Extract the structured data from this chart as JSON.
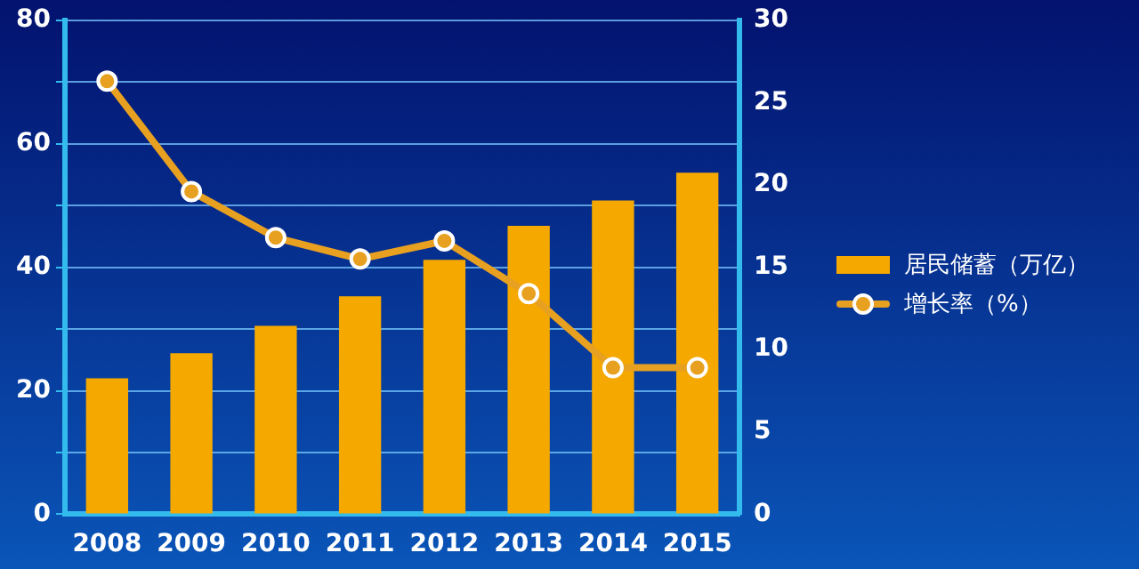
{
  "chart_data": {
    "type": "bar",
    "categories": [
      "2008",
      "2009",
      "2010",
      "2011",
      "2012",
      "2013",
      "2014",
      "2015"
    ],
    "series": [
      {
        "name": "居民储蓄（万亿）",
        "color": "#f5a800",
        "values": [
          22,
          26.1,
          30.5,
          35.3,
          41.2,
          46.7,
          50.8,
          55.3
        ]
      },
      {
        "name": "增长率（%）",
        "type": "line",
        "axis": "y2",
        "color": "#e8a020",
        "values": [
          26.3,
          19.6,
          16.8,
          15.5,
          16.6,
          13.4,
          8.9,
          8.9
        ]
      }
    ],
    "ylim": [
      0,
      80
    ],
    "yticks": [
      0,
      {
        "value": 10,
        "label": null
      },
      20,
      {
        "value": 30,
        "label": null
      },
      40,
      {
        "value": 50,
        "label": null
      },
      60,
      {
        "value": 70,
        "label": null
      },
      80
    ],
    "y2lim": [
      0,
      30
    ],
    "y2ticks": [
      0,
      5,
      10,
      15,
      20,
      25,
      30
    ],
    "grid": "y",
    "legend": "right",
    "marker": "circle"
  }
}
